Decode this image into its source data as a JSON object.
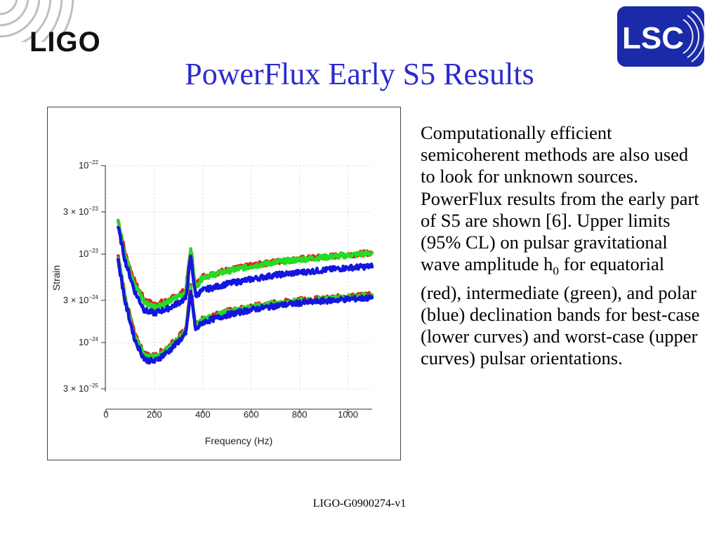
{
  "header": {
    "logo_left_text": "LIGO",
    "logo_right_text": "LSC",
    "title": "PowerFlux Early S5 Results"
  },
  "body": {
    "paragraph_before_sub": "Computationally efficient semicoherent methods are also used to look for unknown sources. PowerFlux results from the early part of S5 are shown [6]. Upper limits (95% CL) on pulsar gravitational wave amplitude h",
    "subscript": "0",
    "paragraph_after_sub": " for equatorial (red), intermediate (green), and polar (blue) declination bands for best-case (lower curves) and worst-case (upper curves) pulsar orientations."
  },
  "footer": {
    "text": "LIGO-G0900274-v1"
  },
  "colors": {
    "title": "#2a2ad0",
    "equatorial": "#e0221c",
    "intermediate": "#22dd22",
    "polar": "#1515e0",
    "lsc_box": "#1a2aa8"
  },
  "chart_data": {
    "type": "scatter",
    "xlabel": "Frequency (Hz)",
    "ylabel": "Strain",
    "xlim": [
      0,
      1100
    ],
    "ylim": [
      3e-25,
      1e-22
    ],
    "y_scale": "log",
    "x_ticks": [
      0,
      200,
      400,
      600,
      800,
      1000
    ],
    "x_tick_labels": [
      "0",
      "200",
      "400",
      "600",
      "800",
      "1000"
    ],
    "y_ticks": [
      1e-22,
      3e-23,
      1e-23,
      3e-24,
      1e-24,
      3e-25
    ],
    "y_tick_labels": [
      {
        "mant": "",
        "exp": "−22"
      },
      {
        "mant": "3 × ",
        "exp": "−23"
      },
      {
        "mant": "",
        "exp": "−23"
      },
      {
        "mant": "3 × ",
        "exp": "−24"
      },
      {
        "mant": "",
        "exp": "−24"
      },
      {
        "mant": "3 × ",
        "exp": "−25"
      }
    ],
    "grid": true,
    "series": [
      {
        "group": "worst-case",
        "band": "equatorial",
        "color": "#e0221c",
        "x": [
          50,
          80,
          120,
          160,
          200,
          260,
          330,
          350,
          370,
          400,
          500,
          600,
          700,
          800,
          900,
          1000,
          1100
        ],
        "y": [
          2.4e-23,
          1e-23,
          4.7e-24,
          3e-24,
          2.7e-24,
          3e-24,
          3.9e-24,
          1.15e-23,
          4.4e-24,
          5.6e-24,
          6.6e-24,
          7.4e-24,
          8.2e-24,
          8.8e-24,
          9.3e-24,
          9.8e-24,
          1.04e-23
        ]
      },
      {
        "group": "worst-case",
        "band": "intermediate",
        "color": "#22dd22",
        "x": [
          50,
          80,
          120,
          160,
          200,
          260,
          330,
          350,
          370,
          400,
          500,
          600,
          700,
          800,
          900,
          1000,
          1100
        ],
        "y": [
          2.3e-23,
          9.5e-24,
          4.5e-24,
          2.8e-24,
          2.55e-24,
          2.9e-24,
          3.75e-24,
          1.1e-23,
          4.2e-24,
          5.5e-24,
          6.4e-24,
          7.3e-24,
          8.1e-24,
          8.7e-24,
          9.2e-24,
          9.7e-24,
          1.03e-23
        ]
      },
      {
        "group": "worst-case",
        "band": "polar",
        "color": "#1515e0",
        "x": [
          50,
          80,
          120,
          160,
          200,
          260,
          330,
          350,
          370,
          400,
          500,
          600,
          700,
          800,
          900,
          1000,
          1100
        ],
        "y": [
          2e-23,
          8.2e-24,
          3.7e-24,
          2.3e-24,
          2.15e-24,
          2.45e-24,
          3.15e-24,
          9.5e-24,
          3.4e-24,
          3.9e-24,
          4.6e-24,
          5.2e-24,
          5.8e-24,
          6.2e-24,
          6.6e-24,
          7e-24,
          7.3e-24
        ]
      },
      {
        "group": "best-case",
        "band": "equatorial",
        "color": "#e0221c",
        "x": [
          50,
          80,
          120,
          160,
          200,
          260,
          330,
          350,
          370,
          400,
          500,
          600,
          700,
          800,
          900,
          1000,
          1100
        ],
        "y": [
          9.5e-24,
          3.2e-24,
          1.2e-24,
          7.4e-25,
          7e-25,
          9e-25,
          1.4e-24,
          4.3e-24,
          1.55e-24,
          1.85e-24,
          2.25e-24,
          2.55e-24,
          2.8e-24,
          3e-24,
          3.15e-24,
          3.3e-24,
          3.45e-24
        ]
      },
      {
        "group": "best-case",
        "band": "intermediate",
        "color": "#22dd22",
        "x": [
          50,
          80,
          120,
          160,
          200,
          260,
          330,
          350,
          370,
          400,
          500,
          600,
          700,
          800,
          900,
          1000,
          1100
        ],
        "y": [
          9e-24,
          3e-24,
          1.15e-24,
          7.1e-25,
          6.7e-25,
          8.7e-25,
          1.35e-24,
          4.1e-24,
          1.5e-24,
          1.8e-24,
          2.2e-24,
          2.5e-24,
          2.75e-24,
          2.95e-24,
          3.1e-24,
          3.25e-24,
          3.4e-24
        ]
      },
      {
        "group": "best-case",
        "band": "polar",
        "color": "#1515e0",
        "x": [
          50,
          80,
          120,
          160,
          200,
          260,
          330,
          350,
          370,
          400,
          500,
          600,
          700,
          800,
          900,
          1000,
          1100
        ],
        "y": [
          8.5e-24,
          2.8e-24,
          1.05e-24,
          6.4e-25,
          6.1e-25,
          8e-25,
          1.25e-24,
          3.8e-24,
          1.4e-24,
          1.7e-24,
          2.05e-24,
          2.35e-24,
          2.6e-24,
          2.8e-24,
          2.95e-24,
          3.1e-24,
          3.2e-24
        ]
      }
    ]
  }
}
